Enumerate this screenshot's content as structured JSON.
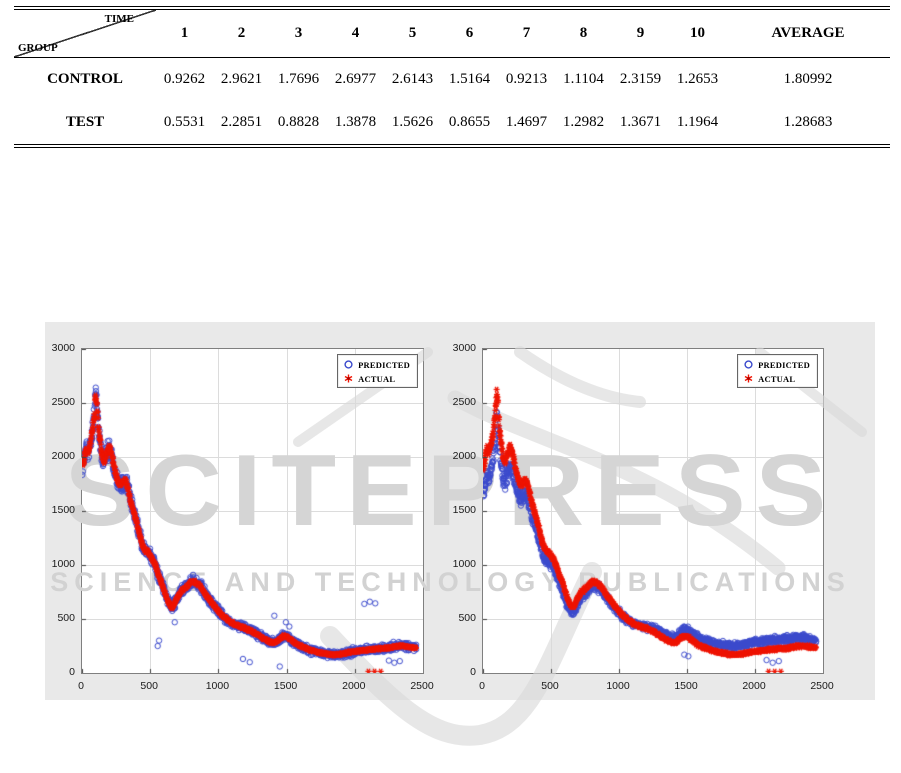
{
  "table": {
    "corner_top": "TIME",
    "corner_bottom": "GROUP",
    "time_columns": [
      "1",
      "2",
      "3",
      "4",
      "5",
      "6",
      "7",
      "8",
      "9",
      "10"
    ],
    "average_label": "AVERAGE",
    "rows": [
      {
        "label": "CONTROL",
        "values": [
          "0.9262",
          "2.9621",
          "1.7696",
          "2.6977",
          "2.6143",
          "1.5164",
          "0.9213",
          "1.1104",
          "2.3159",
          "1.2653"
        ],
        "average": "1.80992"
      },
      {
        "label": "TEST",
        "values": [
          "0.5531",
          "2.2851",
          "0.8828",
          "1.3878",
          "1.5626",
          "0.8655",
          "1.4697",
          "1.2982",
          "1.3671",
          "1.1964"
        ],
        "average": "1.28683"
      }
    ]
  },
  "watermark": {
    "title": "SCITEPRESS",
    "subtitle": "SCIENCE AND TECHNOLOGY PUBLICATIONS",
    "color": "#d5d5d5"
  },
  "colors": {
    "predicted_blue": "#3a49cc",
    "actual_red": "#ee1403",
    "figure_background": "#e9e9e9",
    "grid": "#dcdcdc",
    "axis": "#7f7f7f"
  },
  "chart_data": [
    {
      "type": "scatter",
      "title": "",
      "xlabel": "",
      "ylabel": "",
      "xlim": [
        0,
        2500
      ],
      "ylim": [
        0,
        3000
      ],
      "xticks": [
        0,
        500,
        1000,
        1500,
        2000,
        2500
      ],
      "yticks": [
        0,
        500,
        1000,
        1500,
        2000,
        2500,
        3000
      ],
      "grid": true,
      "legend": {
        "position": "top-right",
        "entries": [
          {
            "label": "PREDICTED",
            "marker": "circle",
            "color": "#3a49cc"
          },
          {
            "label": "ACTUAL",
            "marker": "asterisk",
            "color": "#ee1403"
          }
        ]
      },
      "trend": [
        [
          0,
          1850
        ],
        [
          15,
          1980
        ],
        [
          30,
          2080
        ],
        [
          45,
          2030
        ],
        [
          60,
          2130
        ],
        [
          75,
          2230
        ],
        [
          90,
          2380
        ],
        [
          100,
          2600
        ],
        [
          110,
          2480
        ],
        [
          120,
          2280
        ],
        [
          135,
          2130
        ],
        [
          150,
          1990
        ],
        [
          165,
          1950
        ],
        [
          180,
          2040
        ],
        [
          200,
          2090
        ],
        [
          215,
          2040
        ],
        [
          230,
          1950
        ],
        [
          245,
          1860
        ],
        [
          260,
          1790
        ],
        [
          280,
          1740
        ],
        [
          300,
          1770
        ],
        [
          320,
          1780
        ],
        [
          340,
          1690
        ],
        [
          360,
          1570
        ],
        [
          380,
          1490
        ],
        [
          400,
          1400
        ],
        [
          420,
          1300
        ],
        [
          440,
          1190
        ],
        [
          460,
          1140
        ],
        [
          480,
          1120
        ],
        [
          500,
          1090
        ],
        [
          520,
          1050
        ],
        [
          540,
          990
        ],
        [
          560,
          910
        ],
        [
          580,
          850
        ],
        [
          600,
          770
        ],
        [
          620,
          700
        ],
        [
          640,
          640
        ],
        [
          655,
          610
        ],
        [
          670,
          620
        ],
        [
          690,
          680
        ],
        [
          710,
          720
        ],
        [
          730,
          760
        ],
        [
          750,
          780
        ],
        [
          770,
          800
        ],
        [
          790,
          830
        ],
        [
          810,
          850
        ],
        [
          830,
          840
        ],
        [
          850,
          820
        ],
        [
          870,
          800
        ],
        [
          890,
          760
        ],
        [
          910,
          720
        ],
        [
          930,
          690
        ],
        [
          950,
          650
        ],
        [
          970,
          620
        ],
        [
          990,
          590
        ],
        [
          1010,
          560
        ],
        [
          1030,
          530
        ],
        [
          1060,
          500
        ],
        [
          1090,
          470
        ],
        [
          1120,
          450
        ],
        [
          1150,
          435
        ],
        [
          1180,
          420
        ],
        [
          1210,
          405
        ],
        [
          1240,
          390
        ],
        [
          1270,
          370
        ],
        [
          1300,
          345
        ],
        [
          1330,
          320
        ],
        [
          1360,
          300
        ],
        [
          1390,
          280
        ],
        [
          1420,
          285
        ],
        [
          1450,
          320
        ],
        [
          1480,
          345
        ],
        [
          1510,
          330
        ],
        [
          1540,
          300
        ],
        [
          1570,
          270
        ],
        [
          1600,
          250
        ],
        [
          1640,
          230
        ],
        [
          1680,
          210
        ],
        [
          1720,
          195
        ],
        [
          1760,
          185
        ],
        [
          1800,
          175
        ],
        [
          1850,
          168
        ],
        [
          1900,
          175
        ],
        [
          1950,
          188
        ],
        [
          2000,
          200
        ],
        [
          2050,
          208
        ],
        [
          2100,
          215
        ],
        [
          2150,
          222
        ],
        [
          2200,
          228
        ],
        [
          2250,
          232
        ],
        [
          2300,
          246
        ],
        [
          2350,
          252
        ],
        [
          2400,
          240
        ],
        [
          2450,
          232
        ]
      ],
      "series": [
        {
          "name": "PREDICTED",
          "marker": "circle",
          "color": "#3a49cc",
          "count": 1500,
          "jitter": 95,
          "outliers": [
            [
              555,
              250
            ],
            [
              565,
              300
            ],
            [
              680,
              470
            ],
            [
              1180,
              130
            ],
            [
              1230,
              100
            ],
            [
              1410,
              530
            ],
            [
              1450,
              60
            ],
            [
              1495,
              470
            ],
            [
              1520,
              430
            ],
            [
              2070,
              640
            ],
            [
              2110,
              660
            ],
            [
              2150,
              645
            ],
            [
              2250,
              115
            ],
            [
              2290,
              95
            ],
            [
              2330,
              110
            ]
          ]
        },
        {
          "name": "ACTUAL",
          "marker": "asterisk",
          "color": "#ee1403",
          "count": 1500,
          "jitter": 28,
          "outliers": [
            [
              2100,
              15
            ],
            [
              2145,
              15
            ],
            [
              2190,
              15
            ]
          ]
        }
      ]
    },
    {
      "type": "scatter",
      "title": "",
      "xlabel": "",
      "ylabel": "",
      "xlim": [
        0,
        2500
      ],
      "ylim": [
        0,
        3000
      ],
      "xticks": [
        0,
        500,
        1000,
        1500,
        2000,
        2500
      ],
      "yticks": [
        0,
        500,
        1000,
        1500,
        2000,
        2500,
        3000
      ],
      "grid": true,
      "legend": {
        "position": "top-right",
        "entries": [
          {
            "label": "PREDICTED",
            "marker": "circle",
            "color": "#3a49cc"
          },
          {
            "label": "ACTUAL",
            "marker": "asterisk",
            "color": "#ee1403"
          }
        ]
      },
      "trend": [
        [
          0,
          1850
        ],
        [
          15,
          1980
        ],
        [
          30,
          2080
        ],
        [
          45,
          2030
        ],
        [
          60,
          2130
        ],
        [
          75,
          2230
        ],
        [
          90,
          2380
        ],
        [
          100,
          2600
        ],
        [
          110,
          2480
        ],
        [
          120,
          2280
        ],
        [
          135,
          2130
        ],
        [
          150,
          1990
        ],
        [
          165,
          1950
        ],
        [
          180,
          2040
        ],
        [
          200,
          2090
        ],
        [
          215,
          2040
        ],
        [
          230,
          1950
        ],
        [
          245,
          1860
        ],
        [
          260,
          1790
        ],
        [
          280,
          1740
        ],
        [
          300,
          1770
        ],
        [
          320,
          1780
        ],
        [
          340,
          1690
        ],
        [
          360,
          1570
        ],
        [
          380,
          1490
        ],
        [
          400,
          1400
        ],
        [
          420,
          1300
        ],
        [
          440,
          1190
        ],
        [
          460,
          1140
        ],
        [
          480,
          1120
        ],
        [
          500,
          1090
        ],
        [
          520,
          1050
        ],
        [
          540,
          990
        ],
        [
          560,
          910
        ],
        [
          580,
          850
        ],
        [
          600,
          770
        ],
        [
          620,
          700
        ],
        [
          640,
          640
        ],
        [
          655,
          610
        ],
        [
          670,
          620
        ],
        [
          690,
          680
        ],
        [
          710,
          720
        ],
        [
          730,
          760
        ],
        [
          750,
          780
        ],
        [
          770,
          800
        ],
        [
          790,
          830
        ],
        [
          810,
          850
        ],
        [
          830,
          840
        ],
        [
          850,
          820
        ],
        [
          870,
          800
        ],
        [
          890,
          760
        ],
        [
          910,
          720
        ],
        [
          930,
          690
        ],
        [
          950,
          650
        ],
        [
          970,
          620
        ],
        [
          990,
          590
        ],
        [
          1010,
          560
        ],
        [
          1030,
          530
        ],
        [
          1060,
          500
        ],
        [
          1090,
          470
        ],
        [
          1120,
          450
        ],
        [
          1150,
          435
        ],
        [
          1180,
          420
        ],
        [
          1210,
          405
        ],
        [
          1240,
          390
        ],
        [
          1270,
          370
        ],
        [
          1300,
          345
        ],
        [
          1330,
          320
        ],
        [
          1360,
          300
        ],
        [
          1390,
          280
        ],
        [
          1420,
          285
        ],
        [
          1450,
          320
        ],
        [
          1480,
          345
        ],
        [
          1510,
          330
        ],
        [
          1540,
          300
        ],
        [
          1570,
          270
        ],
        [
          1600,
          250
        ],
        [
          1640,
          230
        ],
        [
          1680,
          210
        ],
        [
          1720,
          195
        ],
        [
          1760,
          185
        ],
        [
          1800,
          175
        ],
        [
          1850,
          168
        ],
        [
          1900,
          175
        ],
        [
          1950,
          188
        ],
        [
          2000,
          200
        ],
        [
          2050,
          208
        ],
        [
          2100,
          215
        ],
        [
          2150,
          222
        ],
        [
          2200,
          228
        ],
        [
          2250,
          232
        ],
        [
          2300,
          246
        ],
        [
          2350,
          252
        ],
        [
          2400,
          240
        ],
        [
          2450,
          232
        ]
      ],
      "series": [
        {
          "name": "PREDICTED",
          "marker": "circle",
          "color": "#3a49cc",
          "count": 1500,
          "jitter": 75,
          "offset_anchors": [
            [
              0,
              -260
            ],
            [
              100,
              -220
            ],
            [
              250,
              -150
            ],
            [
              450,
              -90
            ],
            [
              700,
              -50
            ],
            [
              900,
              -30
            ],
            [
              1100,
              0
            ],
            [
              1300,
              40
            ],
            [
              1500,
              60
            ],
            [
              1800,
              80
            ],
            [
              2100,
              85
            ],
            [
              2450,
              75
            ]
          ],
          "outliers": [
            [
              1480,
              170
            ],
            [
              1510,
              155
            ],
            [
              2085,
              120
            ],
            [
              2130,
              95
            ],
            [
              2175,
              110
            ]
          ]
        },
        {
          "name": "ACTUAL",
          "marker": "asterisk",
          "color": "#ee1403",
          "count": 1500,
          "jitter": 34,
          "outliers": [
            [
              2100,
              15
            ],
            [
              2145,
              15
            ],
            [
              2190,
              15
            ]
          ]
        }
      ]
    }
  ]
}
